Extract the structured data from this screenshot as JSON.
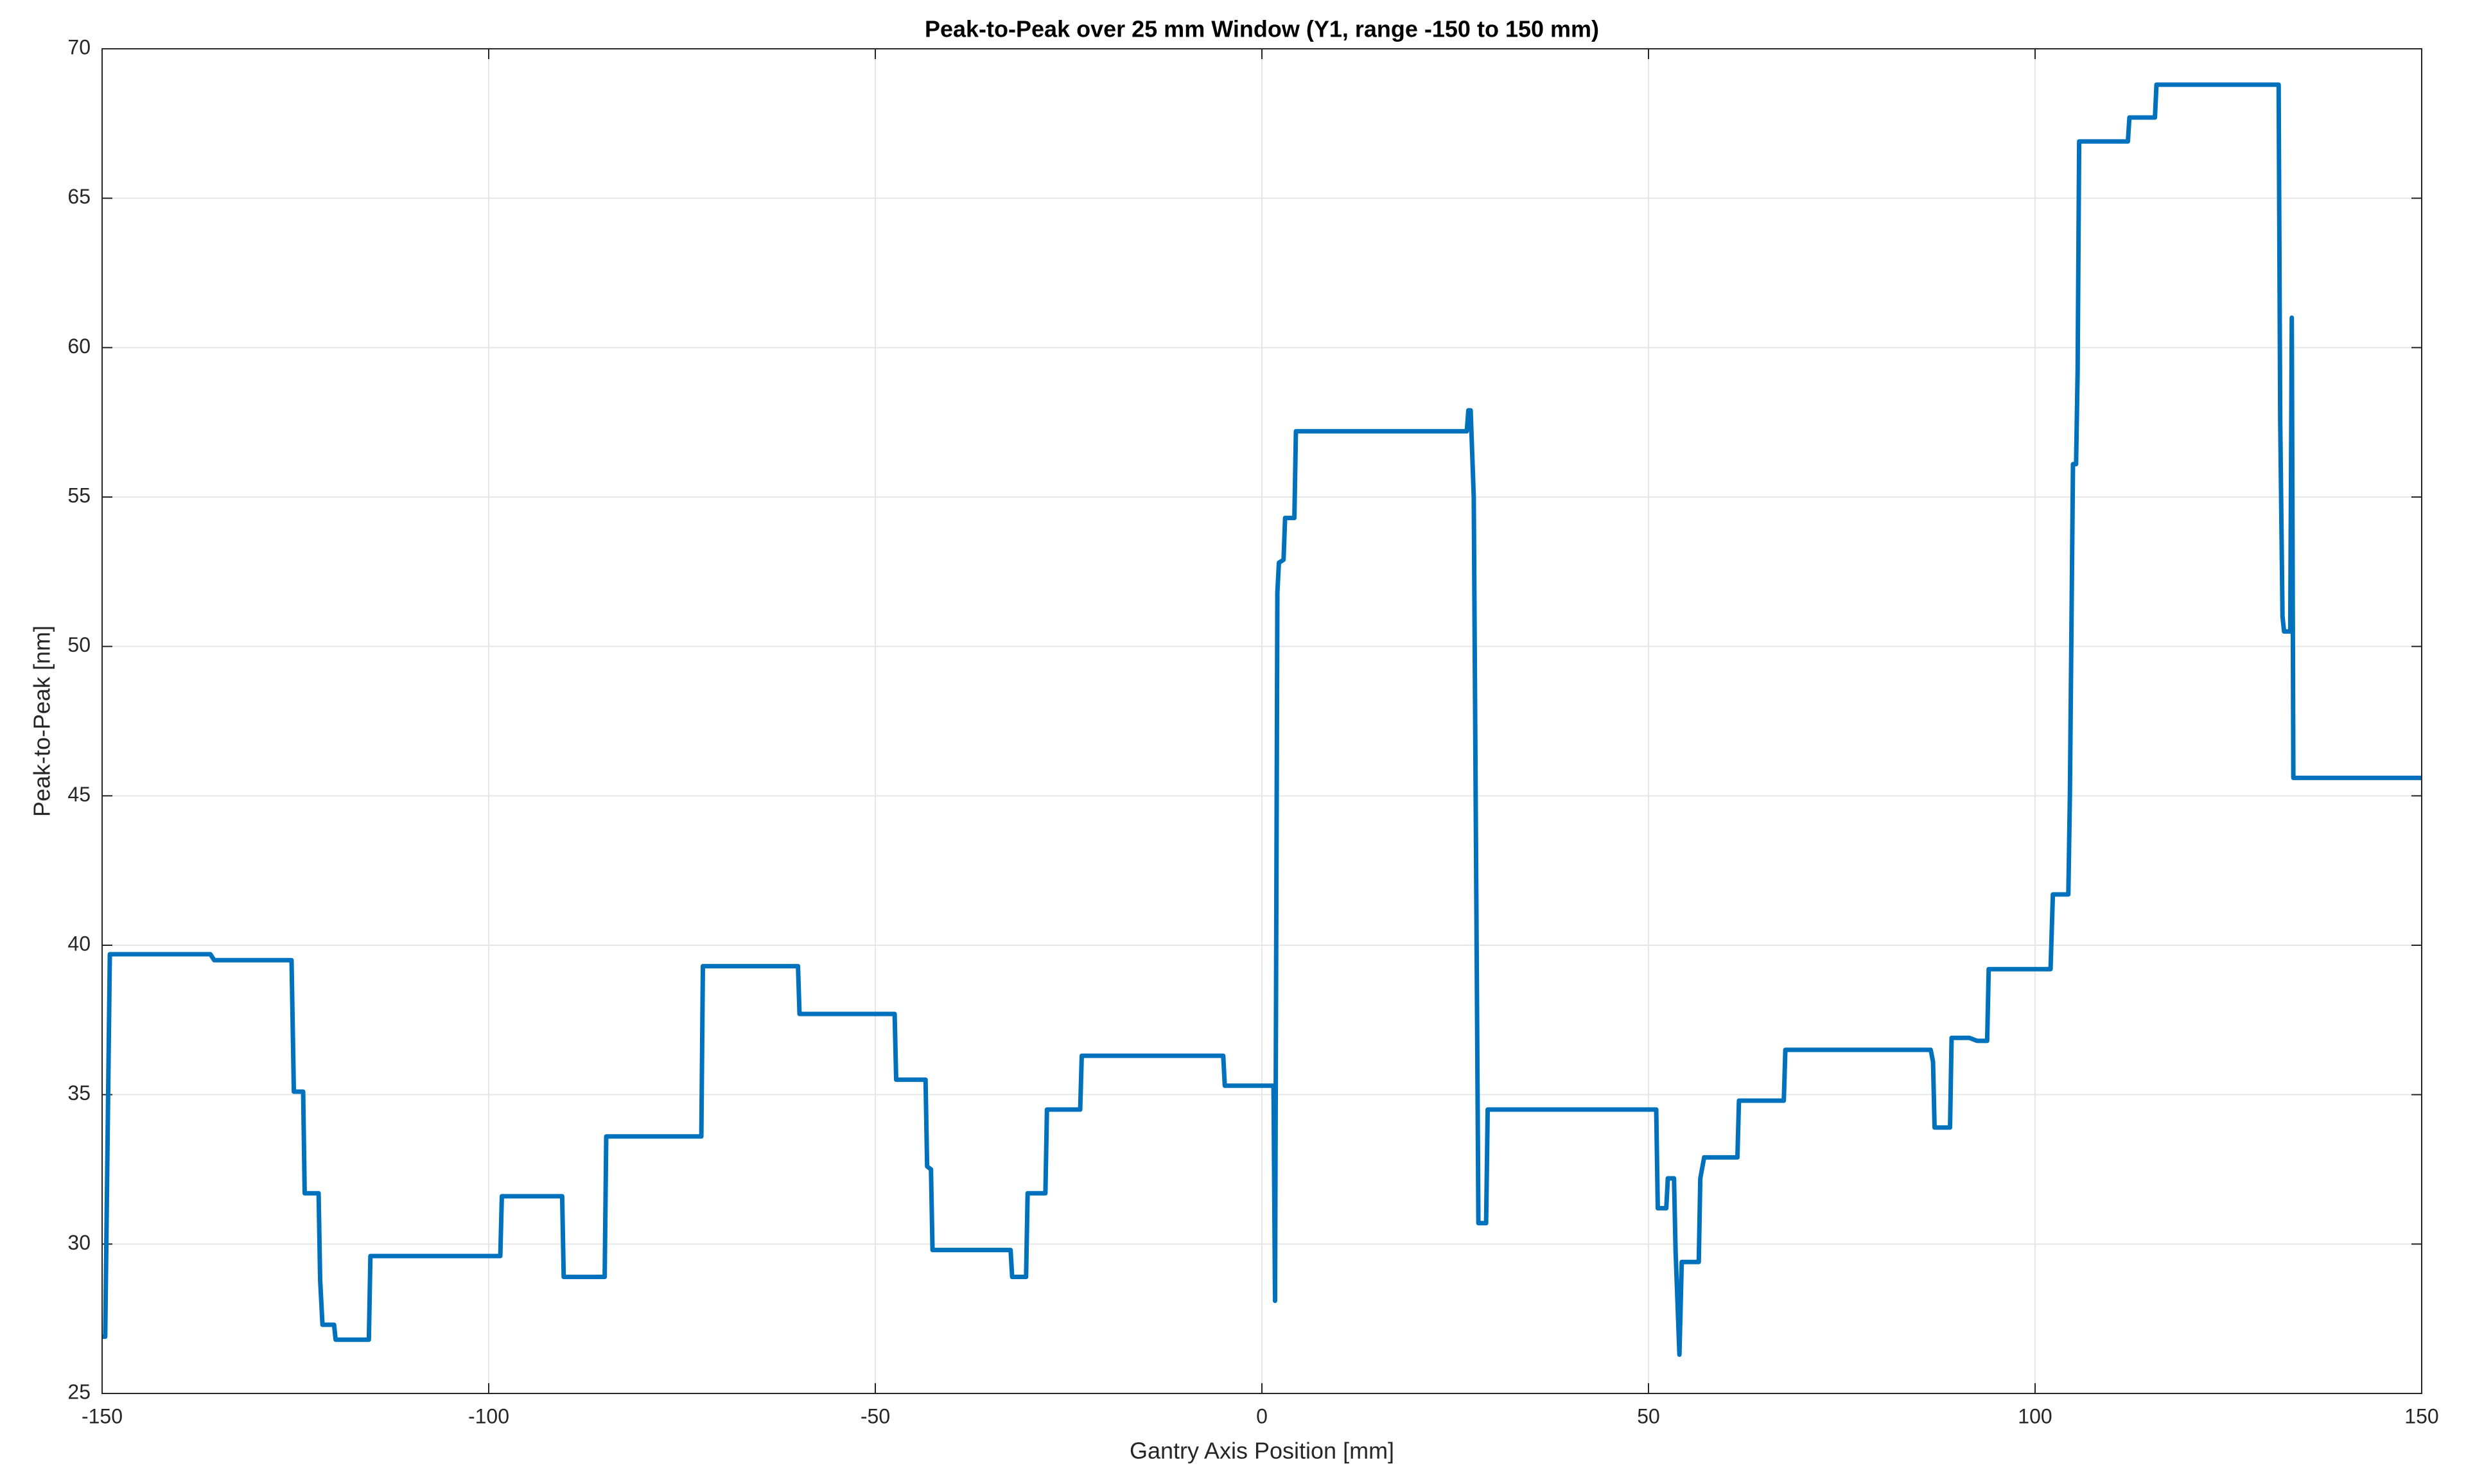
{
  "chart_data": {
    "type": "line",
    "title": "Peak-to-Peak over 25 mm Window (Y1, range -150 to 150 mm)",
    "x_label": "Gantry Axis Position [mm]",
    "y_label": "Peak-to-Peak [nm]",
    "x": [
      -150,
      -149.6,
      -149,
      -136,
      -135.5,
      -125.5,
      -125.2,
      -124,
      -123.8,
      -122,
      -121.8,
      -121.5,
      -120,
      -119.8,
      -115.5,
      -115.3,
      -98.5,
      -98.3,
      -90.5,
      -90.3,
      -85,
      -84.8,
      -72.5,
      -72.3,
      -60,
      -59.8,
      -47.5,
      -47.3,
      -43.5,
      -43.3,
      -42.8,
      -42.6,
      -32.5,
      -32.3,
      -30.5,
      -30.3,
      -28,
      -27.8,
      -23.5,
      -23.3,
      -5,
      -4.8,
      1.5,
      1.7,
      2,
      2.2,
      2.8,
      3,
      4.2,
      4.4,
      26.5,
      26.7,
      27,
      27.4,
      28,
      29,
      29.2,
      51,
      51.2,
      52.3,
      52.5,
      53.3,
      53.5,
      54,
      54.3,
      56.5,
      56.7,
      57.2,
      61.5,
      61.7,
      67.5,
      67.7,
      86.5,
      86.8,
      87,
      89,
      89.2,
      91.5,
      92.5,
      93.8,
      94,
      102,
      102.3,
      104.3,
      104.5,
      104.9,
      105.3,
      105.5,
      105.7,
      112,
      112.2,
      115.5,
      115.7,
      131.5,
      131.7,
      132,
      132.2,
      133,
      133.2,
      133.4,
      150
    ],
    "series": [
      {
        "color": "#0072bd",
        "values": [
          26.9,
          26.9,
          39.7,
          39.7,
          39.5,
          39.5,
          35.1,
          35.1,
          31.7,
          31.7,
          28.8,
          27.3,
          27.3,
          26.8,
          26.8,
          29.6,
          29.6,
          31.6,
          31.6,
          28.9,
          28.9,
          33.6,
          33.6,
          39.3,
          39.3,
          37.7,
          37.7,
          35.5,
          35.5,
          32.6,
          32.5,
          29.8,
          29.8,
          28.9,
          28.9,
          31.7,
          31.7,
          34.5,
          34.5,
          36.3,
          36.3,
          35.3,
          35.3,
          28.1,
          51.8,
          52.8,
          52.9,
          54.3,
          54.3,
          57.2,
          57.2,
          57.9,
          57.9,
          55,
          30.7,
          30.7,
          34.5,
          34.5,
          31.2,
          31.2,
          32.2,
          32.2,
          29.8,
          26.3,
          29.4,
          29.4,
          32.2,
          32.9,
          32.9,
          34.8,
          34.8,
          36.5,
          36.5,
          36.1,
          33.9,
          33.9,
          36.9,
          36.9,
          36.8,
          36.8,
          39.2,
          39.2,
          41.7,
          41.7,
          45,
          56.1,
          56.1,
          59.2,
          66.9,
          66.9,
          67.7,
          67.7,
          68.8,
          68.8,
          57.6,
          51,
          50.5,
          50.5,
          61,
          45.6,
          45.6
        ]
      }
    ],
    "xlim": [
      -150,
      150
    ],
    "xticks": [
      -150,
      -100,
      -50,
      0,
      50,
      100,
      150
    ],
    "ylim": [
      25,
      70
    ],
    "yticks": [
      25,
      30,
      35,
      40,
      45,
      50,
      55,
      60,
      65,
      70
    ],
    "grid": true
  }
}
